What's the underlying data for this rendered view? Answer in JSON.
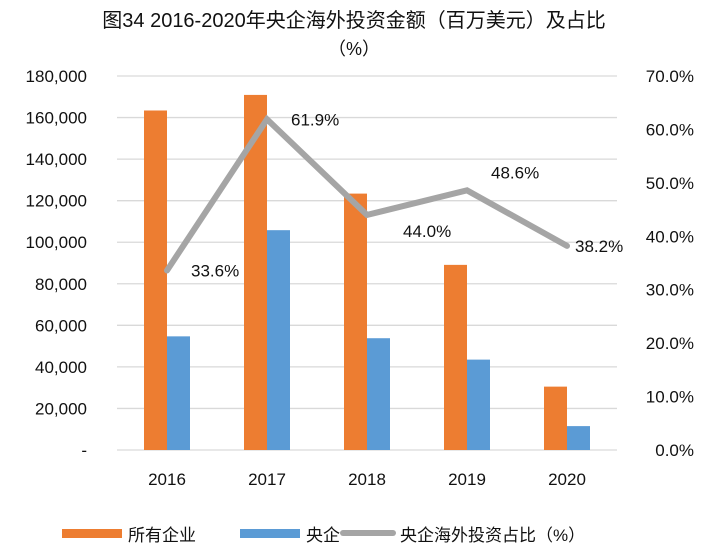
{
  "title": {
    "line1": "图34 2016-2020年央企海外投资金额（百万美元）及占比",
    "line2": "（%）"
  },
  "colors": {
    "all": "#ED7D31",
    "central": "#5B9BD5",
    "ratio": "#A5A5A5",
    "grid": "#D9D9D9"
  },
  "legend": [
    {
      "label": "所有企业",
      "type": "bar",
      "color": "#ED7D31"
    },
    {
      "label": "央企",
      "type": "bar",
      "color": "#5B9BD5"
    },
    {
      "label": "央企海外投资占比（%）",
      "type": "line",
      "color": "#A5A5A5"
    }
  ],
  "chart_data": {
    "type": "bar",
    "title": "图34 2016-2020年央企海外投资金额（百万美元）及占比（%）",
    "categories": [
      "2016",
      "2017",
      "2018",
      "2019",
      "2020"
    ],
    "series": [
      {
        "name": "所有企业",
        "type": "bar",
        "axis": "left",
        "values": [
          163400,
          170900,
          123400,
          89100,
          30500
        ]
      },
      {
        "name": "央企",
        "type": "bar",
        "axis": "left",
        "values": [
          54700,
          105800,
          53800,
          43500,
          11500
        ]
      },
      {
        "name": "央企海外投资占比（%）",
        "type": "line",
        "axis": "right",
        "values": [
          33.6,
          61.9,
          44.0,
          48.6,
          38.2
        ],
        "labels": [
          "33.6%",
          "61.9%",
          "44.0%",
          "48.6%",
          "38.2%"
        ]
      }
    ],
    "left_axis": {
      "ylim": [
        0,
        180000
      ],
      "ticks": [
        0,
        20000,
        40000,
        60000,
        80000,
        100000,
        120000,
        140000,
        160000,
        180000
      ],
      "tick_labels": [
        "-",
        "20,000",
        "40,000",
        "60,000",
        "80,000",
        "100,000",
        "120,000",
        "140,000",
        "160,000",
        "180,000"
      ]
    },
    "right_axis": {
      "ylim": [
        0,
        70
      ],
      "ticks": [
        0,
        10,
        20,
        30,
        40,
        50,
        60,
        70
      ],
      "tick_labels": [
        "0.0%",
        "10.0%",
        "20.0%",
        "30.0%",
        "40.0%",
        "50.0%",
        "60.0%",
        "70.0%"
      ]
    },
    "xlabel": "",
    "ylabel": "",
    "grid": true,
    "legend_position": "bottom"
  }
}
